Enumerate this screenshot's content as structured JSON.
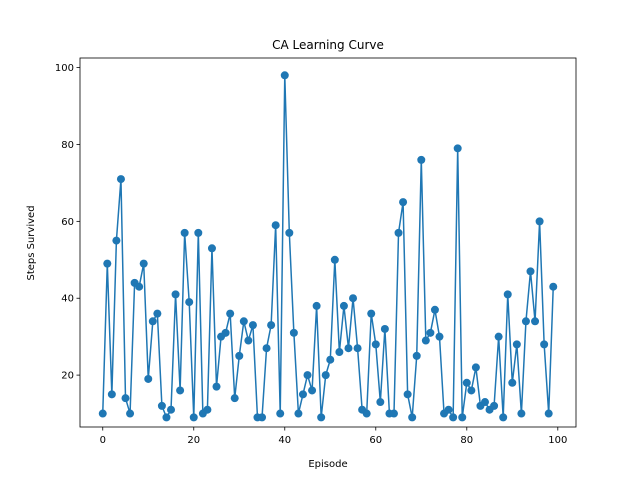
{
  "chart_data": {
    "type": "line",
    "title": "CA Learning Curve",
    "xlabel": "Episode",
    "ylabel": "Steps Survived",
    "xlim": [
      -5,
      104
    ],
    "ylim": [
      6.5,
      102.5
    ],
    "xticks": [
      0,
      20,
      40,
      60,
      80,
      100
    ],
    "yticks": [
      20,
      40,
      60,
      80,
      100
    ],
    "grid": false,
    "legend": "none",
    "series": [
      {
        "color": "#1f77b4",
        "marker": "circle",
        "x": [
          0,
          1,
          2,
          3,
          4,
          5,
          6,
          7,
          8,
          9,
          10,
          11,
          12,
          13,
          14,
          15,
          16,
          17,
          18,
          19,
          20,
          21,
          22,
          23,
          24,
          25,
          26,
          27,
          28,
          29,
          30,
          31,
          32,
          33,
          34,
          35,
          36,
          37,
          38,
          39,
          40,
          41,
          42,
          43,
          44,
          45,
          46,
          47,
          48,
          49,
          50,
          51,
          52,
          53,
          54,
          55,
          56,
          57,
          58,
          59,
          60,
          61,
          62,
          63,
          64,
          65,
          66,
          67,
          68,
          69,
          70,
          71,
          72,
          73,
          74,
          75,
          76,
          77,
          78,
          79,
          80,
          81,
          82,
          83,
          84,
          85,
          86,
          87,
          88,
          89,
          90,
          91,
          92,
          93,
          94,
          95,
          96,
          97,
          98,
          99
        ],
        "values": [
          10,
          49,
          15,
          55,
          71,
          14,
          10,
          44,
          43,
          49,
          19,
          34,
          36,
          12,
          9,
          11,
          41,
          16,
          57,
          39,
          9,
          57,
          10,
          11,
          53,
          17,
          30,
          31,
          36,
          14,
          25,
          34,
          29,
          33,
          9,
          9,
          27,
          33,
          59,
          10,
          98,
          57,
          31,
          10,
          15,
          20,
          16,
          38,
          9,
          20,
          24,
          50,
          26,
          38,
          27,
          40,
          27,
          11,
          10,
          36,
          28,
          13,
          32,
          10,
          10,
          57,
          65,
          15,
          9,
          25,
          76,
          29,
          31,
          37,
          30,
          10,
          11,
          9,
          79,
          9,
          18,
          16,
          22,
          12,
          13,
          11,
          12,
          30,
          9,
          41,
          18,
          28,
          10,
          34,
          47,
          34,
          60,
          28,
          10,
          43
        ]
      }
    ]
  }
}
